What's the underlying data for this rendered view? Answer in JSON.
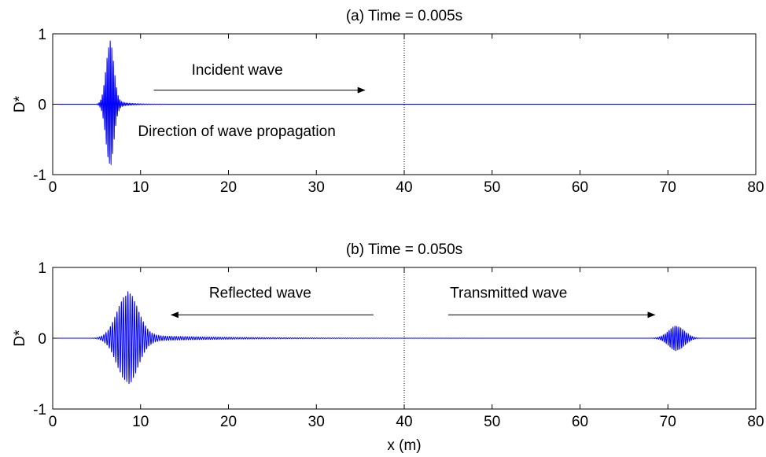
{
  "chart_data": [
    {
      "type": "line",
      "title": "(a) Time = 0.005s",
      "ylabel": "D*",
      "xlabel": "",
      "xlim": [
        0,
        80
      ],
      "ylim": [
        -1,
        1
      ],
      "xticks": [
        0,
        10,
        20,
        30,
        40,
        50,
        60,
        70,
        80
      ],
      "yticks": [
        -1,
        0,
        1
      ],
      "grid": false,
      "line_color": "#0000ff",
      "interface_x": 40,
      "annotations": [
        {
          "text": "Incident wave",
          "x": 15.8,
          "y": 0.42
        },
        {
          "text": "Direction of wave propagation",
          "x": 9.7,
          "y": -0.45
        }
      ],
      "arrows": [
        {
          "from": [
            11.5,
            0.2
          ],
          "to": [
            35.5,
            0.2
          ]
        }
      ],
      "packets": [
        {
          "center": 6.5,
          "amplitude": 0.86,
          "width": 0.45,
          "wavelength": 0.18,
          "tail": 4.5
        }
      ]
    },
    {
      "type": "line",
      "title": "(b) Time = 0.050s",
      "ylabel": "D*",
      "xlabel": "x (m)",
      "xlim": [
        0,
        80
      ],
      "ylim": [
        -1,
        1
      ],
      "xticks": [
        0,
        10,
        20,
        30,
        40,
        50,
        60,
        70,
        80
      ],
      "yticks": [
        -1,
        0,
        1
      ],
      "grid": false,
      "line_color": "#0000ff",
      "interface_x": 40,
      "annotations": [
        {
          "text": "Reflected wave",
          "x": 17.8,
          "y": 0.57
        },
        {
          "text": "Transmitted wave",
          "x": 45.2,
          "y": 0.57
        }
      ],
      "arrows": [
        {
          "from": [
            36.5,
            0.33
          ],
          "to": [
            13.5,
            0.33
          ]
        },
        {
          "from": [
            45,
            0.33
          ],
          "to": [
            68.5,
            0.33
          ]
        }
      ],
      "packets": [
        {
          "center": 8.5,
          "amplitude": 0.62,
          "width": 1.2,
          "wavelength": 0.25,
          "tail": 30
        },
        {
          "center": 71,
          "amplitude": 0.17,
          "width": 0.9,
          "wavelength": 0.22,
          "tail": 4
        }
      ]
    }
  ]
}
